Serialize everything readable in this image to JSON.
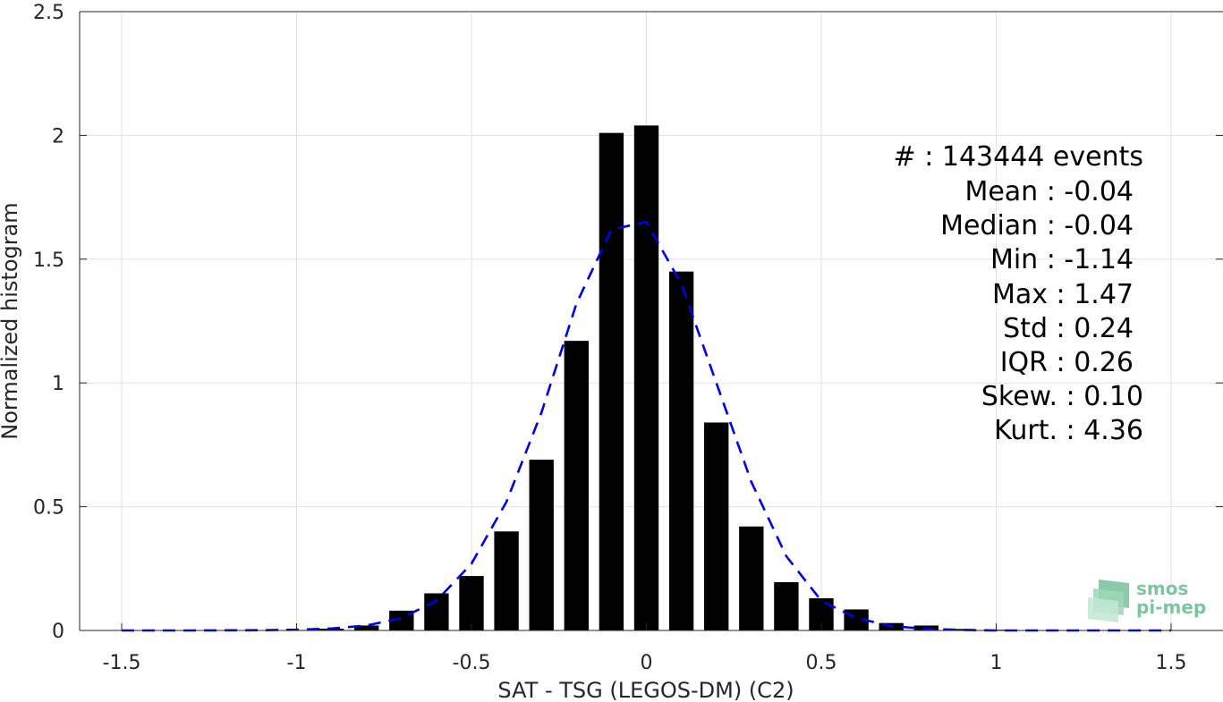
{
  "chart_data": {
    "type": "bar",
    "title": "",
    "xlabel": "SAT - TSG (LEGOS-DM) (C2)",
    "ylabel": "Normalized histogram",
    "xlim": [
      -1.6,
      1.6
    ],
    "ylim": [
      0,
      2.5
    ],
    "grid": true,
    "x_ticks": [
      -1.5,
      -1,
      -0.5,
      0,
      0.5,
      1,
      1.5
    ],
    "x_tick_labels": [
      "-1.5",
      "-1",
      "-0.5",
      "0",
      "0.5",
      "1",
      "1.5"
    ],
    "y_ticks": [
      0,
      0.5,
      1,
      1.5,
      2,
      2.5
    ],
    "y_tick_labels": [
      "0",
      "0.5",
      "1",
      "1.5",
      "2",
      "2.5"
    ],
    "bar_width": 0.07,
    "histogram": {
      "x": [
        -1.0,
        -0.9,
        -0.8,
        -0.7,
        -0.6,
        -0.5,
        -0.4,
        -0.3,
        -0.2,
        -0.1,
        0.0,
        0.1,
        0.2,
        0.3,
        0.4,
        0.5,
        0.6,
        0.7,
        0.8,
        0.9,
        1.0,
        1.1
      ],
      "values": [
        0.002,
        0.007,
        0.02,
        0.08,
        0.15,
        0.22,
        0.4,
        0.69,
        1.17,
        2.01,
        2.04,
        1.45,
        0.84,
        0.42,
        0.195,
        0.13,
        0.085,
        0.03,
        0.02,
        0.006,
        0.003,
        0.001
      ],
      "color": "#000000"
    },
    "fit_curve": {
      "style": "dashed",
      "color": "#0000dd",
      "x": [
        -1.5,
        -1.3,
        -1.1,
        -1.0,
        -0.9,
        -0.8,
        -0.7,
        -0.6,
        -0.5,
        -0.4,
        -0.3,
        -0.2,
        -0.1,
        0.0,
        0.1,
        0.2,
        0.3,
        0.4,
        0.5,
        0.6,
        0.7,
        0.8,
        0.9,
        1.0,
        1.2,
        1.5
      ],
      "y": [
        0.0,
        0.0,
        0.001,
        0.003,
        0.008,
        0.02,
        0.05,
        0.12,
        0.27,
        0.52,
        0.88,
        1.32,
        1.62,
        1.65,
        1.4,
        1.0,
        0.6,
        0.3,
        0.12,
        0.05,
        0.018,
        0.006,
        0.002,
        0.0,
        0.0,
        0.0
      ]
    },
    "annotations": [
      {
        "label": "#",
        "value": ": 143444 events"
      },
      {
        "label": "Mean",
        "value": ": -0.04"
      },
      {
        "label": "Median",
        "value": ": -0.04"
      },
      {
        "label": "Min",
        "value": ": -1.14"
      },
      {
        "label": "Max",
        "value": ": 1.47"
      },
      {
        "label": "Std",
        "value": ": 0.24"
      },
      {
        "label": "IQR",
        "value": ": 0.26"
      },
      {
        "label": "Skew.",
        "value": ": 0.10"
      },
      {
        "label": "Kurt.",
        "value": ": 4.36"
      }
    ]
  },
  "logo": {
    "line1": "smos",
    "line2": "pi-mep",
    "color": "#7fc4a0"
  }
}
